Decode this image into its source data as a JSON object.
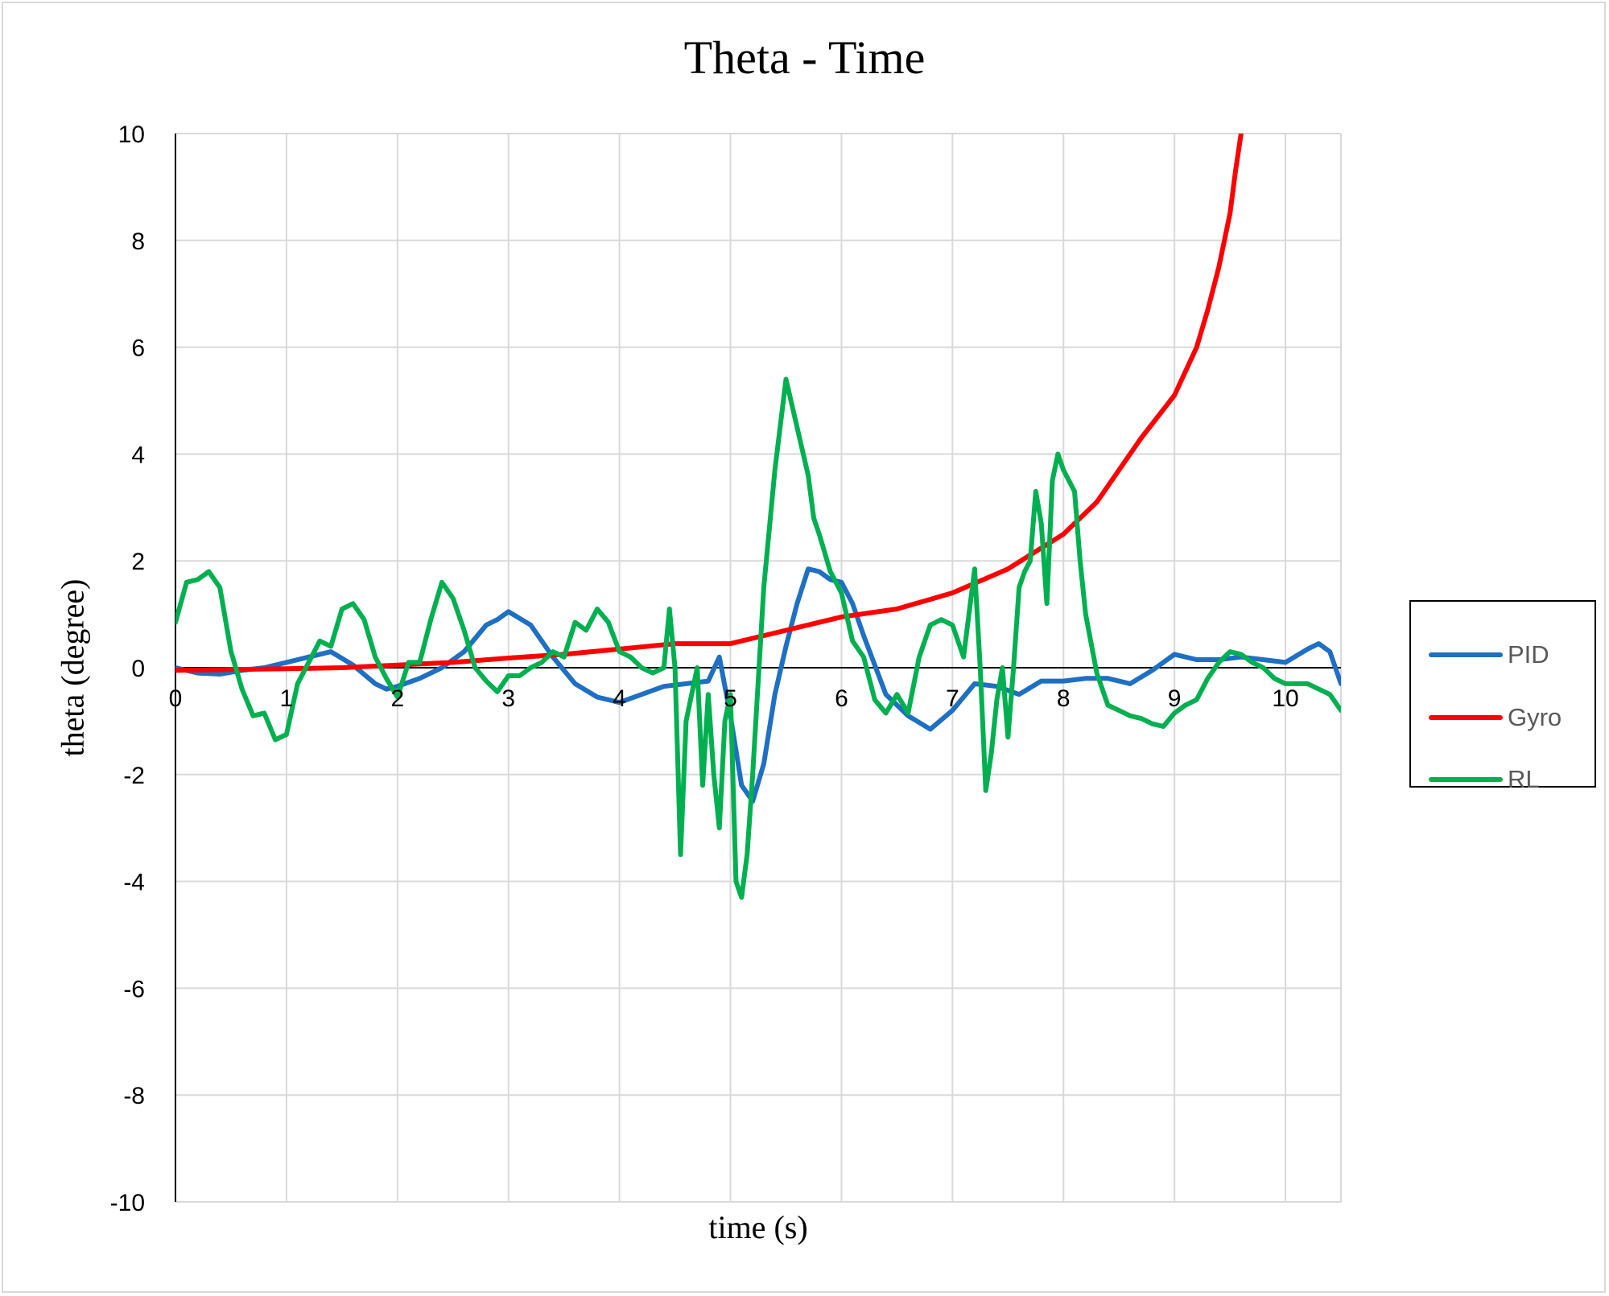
{
  "chart_data": {
    "type": "line",
    "title": "Theta - Time",
    "xlabel": "time (s)",
    "ylabel": "theta (degree)",
    "xlim": [
      0,
      10.5
    ],
    "ylim": [
      -10,
      10
    ],
    "x_ticks": [
      0,
      1,
      2,
      3,
      4,
      5,
      6,
      7,
      8,
      9,
      10
    ],
    "y_ticks": [
      -10,
      -8,
      -6,
      -4,
      -2,
      0,
      2,
      4,
      6,
      8,
      10
    ],
    "grid": true,
    "legend_position": "right",
    "series": [
      {
        "name": "PID",
        "color": "#1f6fc2",
        "x": [
          0,
          0.2,
          0.4,
          0.6,
          0.8,
          1.0,
          1.2,
          1.4,
          1.6,
          1.8,
          1.9,
          2.0,
          2.2,
          2.4,
          2.6,
          2.8,
          2.9,
          3.0,
          3.2,
          3.4,
          3.6,
          3.8,
          4.0,
          4.2,
          4.4,
          4.6,
          4.8,
          4.9,
          5.0,
          5.1,
          5.2,
          5.3,
          5.4,
          5.5,
          5.6,
          5.7,
          5.8,
          5.9,
          6.0,
          6.1,
          6.2,
          6.4,
          6.6,
          6.8,
          7.0,
          7.2,
          7.4,
          7.6,
          7.8,
          8.0,
          8.2,
          8.4,
          8.6,
          8.8,
          9.0,
          9.2,
          9.4,
          9.6,
          9.8,
          10.0,
          10.2,
          10.3,
          10.4,
          10.5
        ],
        "y": [
          0.0,
          -0.1,
          -0.12,
          -0.05,
          0.0,
          0.1,
          0.2,
          0.3,
          0.05,
          -0.3,
          -0.4,
          -0.35,
          -0.2,
          0.0,
          0.3,
          0.8,
          0.9,
          1.05,
          0.8,
          0.2,
          -0.3,
          -0.55,
          -0.65,
          -0.5,
          -0.35,
          -0.3,
          -0.25,
          0.2,
          -0.9,
          -2.2,
          -2.5,
          -1.8,
          -0.5,
          0.4,
          1.2,
          1.85,
          1.8,
          1.65,
          1.6,
          1.2,
          0.6,
          -0.5,
          -0.9,
          -1.15,
          -0.8,
          -0.3,
          -0.35,
          -0.5,
          -0.25,
          -0.25,
          -0.2,
          -0.2,
          -0.3,
          -0.05,
          0.25,
          0.15,
          0.15,
          0.2,
          0.15,
          0.1,
          0.35,
          0.45,
          0.3,
          -0.3
        ]
      },
      {
        "name": "Gyro",
        "color": "#ff0000",
        "x": [
          0,
          1,
          1.5,
          2,
          2.5,
          3,
          3.5,
          4,
          4.5,
          5,
          5.5,
          6,
          6.5,
          7,
          7.5,
          8,
          8.3,
          8.5,
          8.7,
          9.0,
          9.2,
          9.3,
          9.4,
          9.5,
          9.55,
          9.6,
          9.62
        ],
        "y": [
          -0.05,
          -0.02,
          0.0,
          0.05,
          0.1,
          0.18,
          0.25,
          0.35,
          0.45,
          0.45,
          0.7,
          0.95,
          1.1,
          1.4,
          1.85,
          2.5,
          3.1,
          3.7,
          4.3,
          5.1,
          6.0,
          6.7,
          7.5,
          8.5,
          9.3,
          10.0,
          10.2
        ]
      },
      {
        "name": "RL",
        "color": "#00b050",
        "x": [
          0,
          0.1,
          0.2,
          0.3,
          0.4,
          0.5,
          0.6,
          0.7,
          0.8,
          0.9,
          1.0,
          1.1,
          1.2,
          1.3,
          1.4,
          1.5,
          1.6,
          1.7,
          1.8,
          1.9,
          2.0,
          2.1,
          2.2,
          2.3,
          2.4,
          2.5,
          2.6,
          2.7,
          2.8,
          2.9,
          3.0,
          3.1,
          3.2,
          3.3,
          3.4,
          3.5,
          3.6,
          3.7,
          3.8,
          3.9,
          4.0,
          4.1,
          4.2,
          4.3,
          4.4,
          4.45,
          4.5,
          4.55,
          4.6,
          4.65,
          4.7,
          4.75,
          4.8,
          4.85,
          4.9,
          4.95,
          5.0,
          5.05,
          5.1,
          5.15,
          5.2,
          5.3,
          5.4,
          5.5,
          5.6,
          5.7,
          5.75,
          5.8,
          5.9,
          6.0,
          6.1,
          6.2,
          6.3,
          6.4,
          6.5,
          6.6,
          6.7,
          6.8,
          6.9,
          7.0,
          7.1,
          7.2,
          7.25,
          7.3,
          7.35,
          7.4,
          7.45,
          7.5,
          7.55,
          7.6,
          7.65,
          7.7,
          7.75,
          7.8,
          7.85,
          7.9,
          7.95,
          8.0,
          8.05,
          8.1,
          8.15,
          8.2,
          8.3,
          8.4,
          8.5,
          8.6,
          8.7,
          8.8,
          8.9,
          9.0,
          9.1,
          9.2,
          9.3,
          9.4,
          9.5,
          9.6,
          9.7,
          9.8,
          9.9,
          10.0,
          10.1,
          10.2,
          10.3,
          10.4,
          10.5
        ],
        "y": [
          0.85,
          1.6,
          1.65,
          1.8,
          1.5,
          0.3,
          -0.4,
          -0.9,
          -0.85,
          -1.35,
          -1.25,
          -0.3,
          0.1,
          0.5,
          0.4,
          1.1,
          1.2,
          0.9,
          0.2,
          -0.2,
          -0.55,
          0.1,
          0.1,
          0.9,
          1.6,
          1.3,
          0.7,
          0.0,
          -0.25,
          -0.45,
          -0.15,
          -0.15,
          0.0,
          0.1,
          0.3,
          0.2,
          0.85,
          0.7,
          1.1,
          0.85,
          0.3,
          0.2,
          0.0,
          -0.1,
          0.0,
          1.1,
          0.0,
          -3.5,
          -1.0,
          -0.5,
          0.0,
          -2.2,
          -0.5,
          -2.0,
          -3.0,
          -1.0,
          -0.5,
          -4.0,
          -4.3,
          -3.5,
          -2.0,
          1.5,
          3.7,
          5.4,
          4.5,
          3.6,
          2.8,
          2.5,
          1.8,
          1.4,
          0.5,
          0.2,
          -0.6,
          -0.85,
          -0.5,
          -0.85,
          0.2,
          0.8,
          0.9,
          0.8,
          0.2,
          1.85,
          0.0,
          -2.3,
          -1.6,
          -0.6,
          0.0,
          -1.3,
          0.0,
          1.5,
          1.8,
          2.0,
          3.3,
          2.7,
          1.2,
          3.5,
          4.0,
          3.7,
          3.5,
          3.3,
          2.0,
          1.0,
          -0.1,
          -0.7,
          -0.8,
          -0.9,
          -0.95,
          -1.05,
          -1.1,
          -0.85,
          -0.7,
          -0.6,
          -0.2,
          0.1,
          0.3,
          0.25,
          0.1,
          0.0,
          -0.2,
          -0.3,
          -0.3,
          -0.3,
          -0.4,
          -0.5,
          -0.8
        ]
      }
    ]
  }
}
